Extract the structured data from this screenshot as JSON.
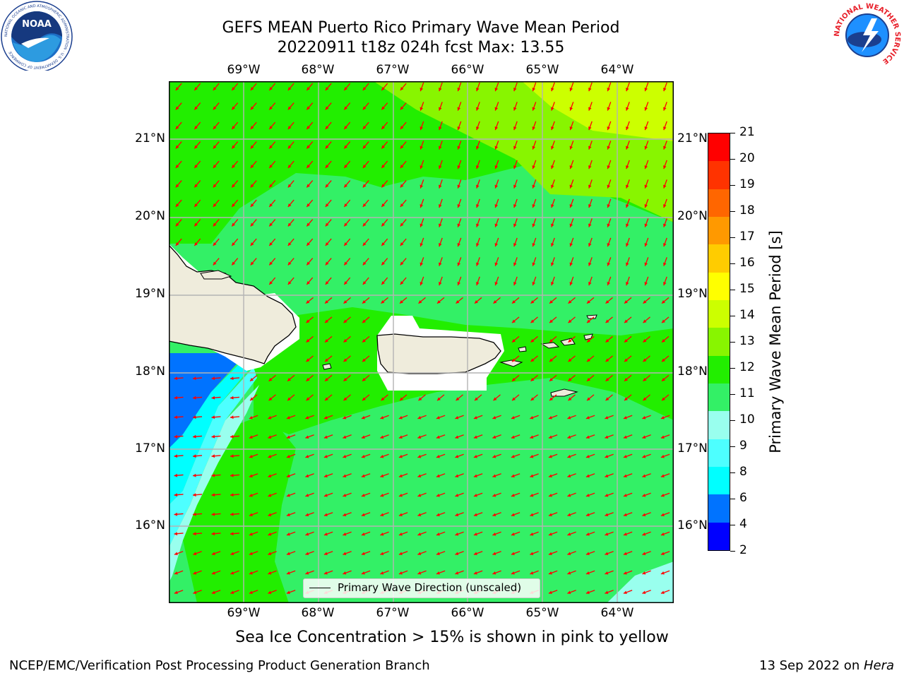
{
  "header": {
    "title_line1": "GEFS MEAN Puerto Rico Primary Wave Mean Period",
    "title_line2": "20220911 t18z 024h fcst   Max: 13.55"
  },
  "map": {
    "lon_labels": [
      "69°W",
      "68°W",
      "67°W",
      "66°W",
      "65°W",
      "64°W"
    ],
    "lat_labels": [
      "21°N",
      "20°N",
      "19°N",
      "18°N",
      "17°N",
      "16°N"
    ],
    "legend_label": "Primary Wave Direction (unscaled)",
    "arrow_color": "#ff0000",
    "land_color": "#efecdc"
  },
  "colorbar": {
    "label": "Primary Wave Mean Period [s]",
    "ticks": [
      "2",
      "4",
      "6",
      "8",
      "9",
      "10",
      "11",
      "12",
      "13",
      "14",
      "15",
      "16",
      "17",
      "18",
      "19",
      "20",
      "21"
    ],
    "colors": [
      "#0000ff",
      "#0073ff",
      "#00ffff",
      "#4dffff",
      "#99ffee",
      "#33f066",
      "#22ee00",
      "#88f500",
      "#ccff00",
      "#ffff00",
      "#ffcc00",
      "#ff9900",
      "#ff6600",
      "#ff3300",
      "#ff0000"
    ]
  },
  "notes": {
    "sea_ice": "Sea Ice Concentration > 15% is shown in pink to yellow",
    "branch": "NCEP/EMC/Verification Post Processing Product Generation Branch",
    "date_prefix": "13 Sep 2022 on ",
    "date_host": "Hera"
  },
  "logos": {
    "noaa_text": "NOAA",
    "noaa_ring": "NATIONAL OCEANIC AND ATMOSPHERIC ADMINISTRATION · U.S. DEPARTMENT OF COMMERCE",
    "nws_ring": "NATIONAL WEATHER SERVICE"
  }
}
